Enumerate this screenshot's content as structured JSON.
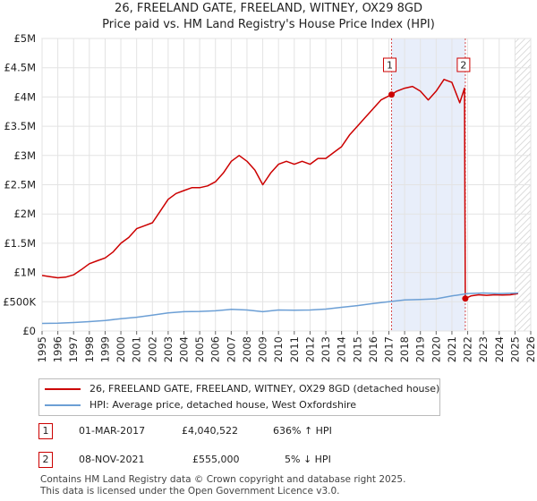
{
  "chart_data": {
    "type": "line",
    "title": "26, FREELAND GATE, FREELAND, WITNEY, OX29 8GD",
    "subtitle": "Price paid vs. HM Land Registry's House Price Index (HPI)",
    "xlim": [
      1995,
      2026
    ],
    "ylim": [
      0,
      5000000
    ],
    "y_ticks": [
      {
        "value": 0,
        "label": "£0"
      },
      {
        "value": 500000,
        "label": "£500K"
      },
      {
        "value": 1000000,
        "label": "£1M"
      },
      {
        "value": 1500000,
        "label": "£1.5M"
      },
      {
        "value": 2000000,
        "label": "£2M"
      },
      {
        "value": 2500000,
        "label": "£2.5M"
      },
      {
        "value": 3000000,
        "label": "£3M"
      },
      {
        "value": 3500000,
        "label": "£3.5M"
      },
      {
        "value": 4000000,
        "label": "£4M"
      },
      {
        "value": 4500000,
        "label": "£4.5M"
      },
      {
        "value": 5000000,
        "label": "£5M"
      }
    ],
    "x_ticks": [
      "1995",
      "1996",
      "1997",
      "1998",
      "1999",
      "2000",
      "2001",
      "2002",
      "2003",
      "2004",
      "2005",
      "2006",
      "2007",
      "2008",
      "2009",
      "2010",
      "2011",
      "2012",
      "2013",
      "2014",
      "2015",
      "2016",
      "2017",
      "2018",
      "2019",
      "2020",
      "2021",
      "2022",
      "2023",
      "2024",
      "2025",
      "2026"
    ],
    "grid": true,
    "shaded_span": [
      2017.17,
      2021.85
    ],
    "hatched_from": 2025.0,
    "series": [
      {
        "name": "26, FREELAND GATE, FREELAND, WITNEY, OX29 8GD (detached house)",
        "color": "#cc0000",
        "points": [
          [
            1995.0,
            950000
          ],
          [
            1995.5,
            930000
          ],
          [
            1996.0,
            910000
          ],
          [
            1996.5,
            920000
          ],
          [
            1997.0,
            960000
          ],
          [
            1997.5,
            1050000
          ],
          [
            1998.0,
            1150000
          ],
          [
            1998.5,
            1200000
          ],
          [
            1999.0,
            1250000
          ],
          [
            1999.5,
            1350000
          ],
          [
            2000.0,
            1500000
          ],
          [
            2000.5,
            1600000
          ],
          [
            2001.0,
            1750000
          ],
          [
            2001.5,
            1800000
          ],
          [
            2002.0,
            1850000
          ],
          [
            2002.5,
            2050000
          ],
          [
            2003.0,
            2250000
          ],
          [
            2003.5,
            2350000
          ],
          [
            2004.0,
            2400000
          ],
          [
            2004.5,
            2450000
          ],
          [
            2005.0,
            2450000
          ],
          [
            2005.5,
            2480000
          ],
          [
            2006.0,
            2550000
          ],
          [
            2006.5,
            2700000
          ],
          [
            2007.0,
            2900000
          ],
          [
            2007.5,
            3000000
          ],
          [
            2008.0,
            2900000
          ],
          [
            2008.5,
            2750000
          ],
          [
            2009.0,
            2500000
          ],
          [
            2009.5,
            2700000
          ],
          [
            2010.0,
            2850000
          ],
          [
            2010.5,
            2900000
          ],
          [
            2011.0,
            2850000
          ],
          [
            2011.5,
            2900000
          ],
          [
            2012.0,
            2850000
          ],
          [
            2012.5,
            2950000
          ],
          [
            2013.0,
            2950000
          ],
          [
            2013.5,
            3050000
          ],
          [
            2014.0,
            3150000
          ],
          [
            2014.5,
            3350000
          ],
          [
            2015.0,
            3500000
          ],
          [
            2015.5,
            3650000
          ],
          [
            2016.0,
            3800000
          ],
          [
            2016.5,
            3950000
          ],
          [
            2017.17,
            4040522
          ],
          [
            2017.5,
            4100000
          ],
          [
            2018.0,
            4150000
          ],
          [
            2018.5,
            4180000
          ],
          [
            2019.0,
            4100000
          ],
          [
            2019.5,
            3950000
          ],
          [
            2020.0,
            4100000
          ],
          [
            2020.5,
            4300000
          ],
          [
            2021.0,
            4250000
          ],
          [
            2021.5,
            3900000
          ],
          [
            2021.8,
            4150000
          ],
          [
            2021.85,
            555000
          ],
          [
            2022.2,
            600000
          ],
          [
            2022.7,
            620000
          ],
          [
            2023.2,
            610000
          ],
          [
            2023.7,
            620000
          ],
          [
            2024.2,
            615000
          ],
          [
            2024.7,
            620000
          ],
          [
            2025.2,
            640000
          ]
        ]
      },
      {
        "name": "HPI: Average price, detached house, West Oxfordshire",
        "color": "#6c9fd5",
        "points": [
          [
            1995.0,
            130000
          ],
          [
            1996.0,
            133000
          ],
          [
            1997.0,
            145000
          ],
          [
            1998.0,
            160000
          ],
          [
            1999.0,
            180000
          ],
          [
            2000.0,
            210000
          ],
          [
            2001.0,
            235000
          ],
          [
            2002.0,
            270000
          ],
          [
            2003.0,
            310000
          ],
          [
            2004.0,
            330000
          ],
          [
            2005.0,
            335000
          ],
          [
            2006.0,
            345000
          ],
          [
            2007.0,
            370000
          ],
          [
            2008.0,
            360000
          ],
          [
            2009.0,
            330000
          ],
          [
            2010.0,
            360000
          ],
          [
            2011.0,
            355000
          ],
          [
            2012.0,
            360000
          ],
          [
            2013.0,
            375000
          ],
          [
            2014.0,
            405000
          ],
          [
            2015.0,
            435000
          ],
          [
            2016.0,
            470000
          ],
          [
            2017.0,
            500000
          ],
          [
            2018.0,
            530000
          ],
          [
            2019.0,
            540000
          ],
          [
            2020.0,
            550000
          ],
          [
            2021.0,
            600000
          ],
          [
            2022.0,
            640000
          ],
          [
            2023.0,
            650000
          ],
          [
            2024.0,
            640000
          ],
          [
            2025.2,
            650000
          ]
        ]
      }
    ],
    "markers": [
      {
        "label": "1",
        "x": 2017.17,
        "y": 4040522
      },
      {
        "label": "2",
        "x": 2021.85,
        "y": 555000
      }
    ]
  },
  "legend": {
    "item1": "26, FREELAND GATE, FREELAND, WITNEY, OX29 8GD (detached house)",
    "item2": "HPI: Average price, detached house, West Oxfordshire"
  },
  "transactions": [
    {
      "num": "1",
      "date": "01-MAR-2017",
      "price": "£4,040,522",
      "hpi": "636% ↑ HPI"
    },
    {
      "num": "2",
      "date": "08-NOV-2021",
      "price": "£555,000",
      "hpi": "5% ↓ HPI"
    }
  ],
  "footer": {
    "line1": "Contains HM Land Registry data © Crown copyright and database right 2025.",
    "line2": "This data is licensed under the Open Government Licence v3.0."
  }
}
